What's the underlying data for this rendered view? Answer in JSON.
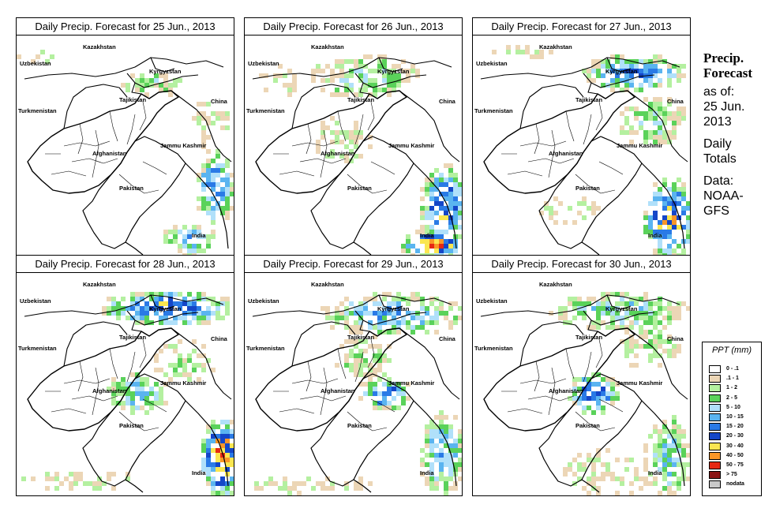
{
  "panels": [
    {
      "title": "Daily Precip. Forecast for  25 Jun., 2013"
    },
    {
      "title": "Daily Precip. Forecast for  26 Jun., 2013"
    },
    {
      "title": "Daily Precip. Forecast for  27 Jun., 2013"
    },
    {
      "title": "Daily Precip. Forecast for  28 Jun., 2013"
    },
    {
      "title": "Daily Precip. Forecast for  29 Jun., 2013"
    },
    {
      "title": "Daily Precip. Forecast for  30 Jun., 2013"
    }
  ],
  "map_labels": {
    "kazakhstan": "Kazakhstan",
    "uzbekistan": "Uzbekistan",
    "kyrgyzstan": "Kyrgyzstan",
    "tajikistan": "Tajikistan",
    "turkmenistan": "Turkmenistan",
    "china": "China",
    "afghanistan": "Afghanistan",
    "jammu_kashmir": "Jammu Kashmir",
    "pakistan": "Pakistan",
    "india": "India"
  },
  "sidebar": {
    "title_line1": "Precip.",
    "title_line2": "Forecast",
    "asof_line1": "as of:",
    "asof_line2": "25 Jun.",
    "asof_line3": "2013",
    "daily_line1": "Daily",
    "daily_line2": "Totals",
    "data_line1": "Data:",
    "data_line2": "NOAA-",
    "data_line3": "GFS"
  },
  "legend": {
    "title": "PPT (mm)",
    "items": [
      {
        "label": "0 - .1",
        "color": "#ffffff"
      },
      {
        "label": ".1 - 1",
        "color": "#ecd6b6"
      },
      {
        "label": "1 - 2",
        "color": "#b4f0a0"
      },
      {
        "label": "2 - 5",
        "color": "#5ad25a"
      },
      {
        "label": "5 - 10",
        "color": "#b0e0fa"
      },
      {
        "label": "10 - 15",
        "color": "#5ab4f0"
      },
      {
        "label": "15 - 20",
        "color": "#2a7ae6"
      },
      {
        "label": "20 - 30",
        "color": "#1446c8"
      },
      {
        "label": "30 - 40",
        "color": "#fae650"
      },
      {
        "label": "40 - 50",
        "color": "#fa9628"
      },
      {
        "label": "50 - 75",
        "color": "#e62814"
      },
      {
        "label": "> 75",
        "color": "#8c1414"
      },
      {
        "label": "nodata",
        "color": "#c8c8c8"
      }
    ]
  }
}
